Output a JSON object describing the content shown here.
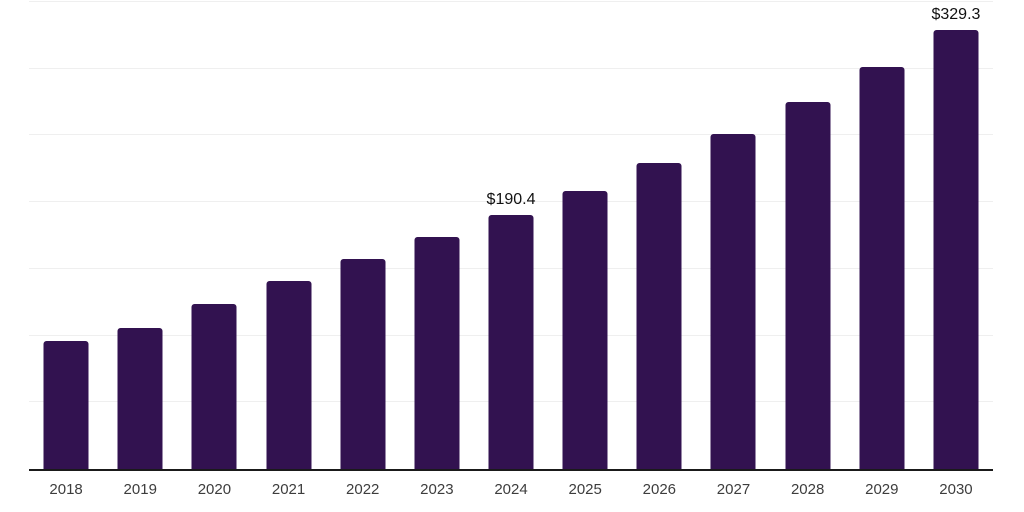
{
  "chart_data": {
    "type": "bar",
    "title": "",
    "categories": [
      "2018",
      "2019",
      "2020",
      "2021",
      "2022",
      "2023",
      "2024",
      "2025",
      "2026",
      "2027",
      "2028",
      "2029",
      "2030"
    ],
    "values": [
      95.6,
      105.5,
      124.0,
      141.1,
      157.6,
      174.0,
      190.4,
      208.3,
      229.3,
      250.9,
      274.8,
      301.0,
      329.3
    ],
    "data_labels": {
      "2024": "$190.4",
      "2030": "$329.3"
    },
    "xlabel": "",
    "ylabel": "",
    "ylim": [
      0,
      350
    ],
    "gridline_step": 50,
    "grid": "horizontal",
    "legend_position": "none",
    "y_axis_labels_visible": false,
    "bar_color": "#321250",
    "axis_line_color": "#1a1a1a",
    "gridline_color": "#efefef",
    "data_label_color": "#111111",
    "tick_label_color": "#3d3d3d",
    "background_color": "#ffffff"
  }
}
